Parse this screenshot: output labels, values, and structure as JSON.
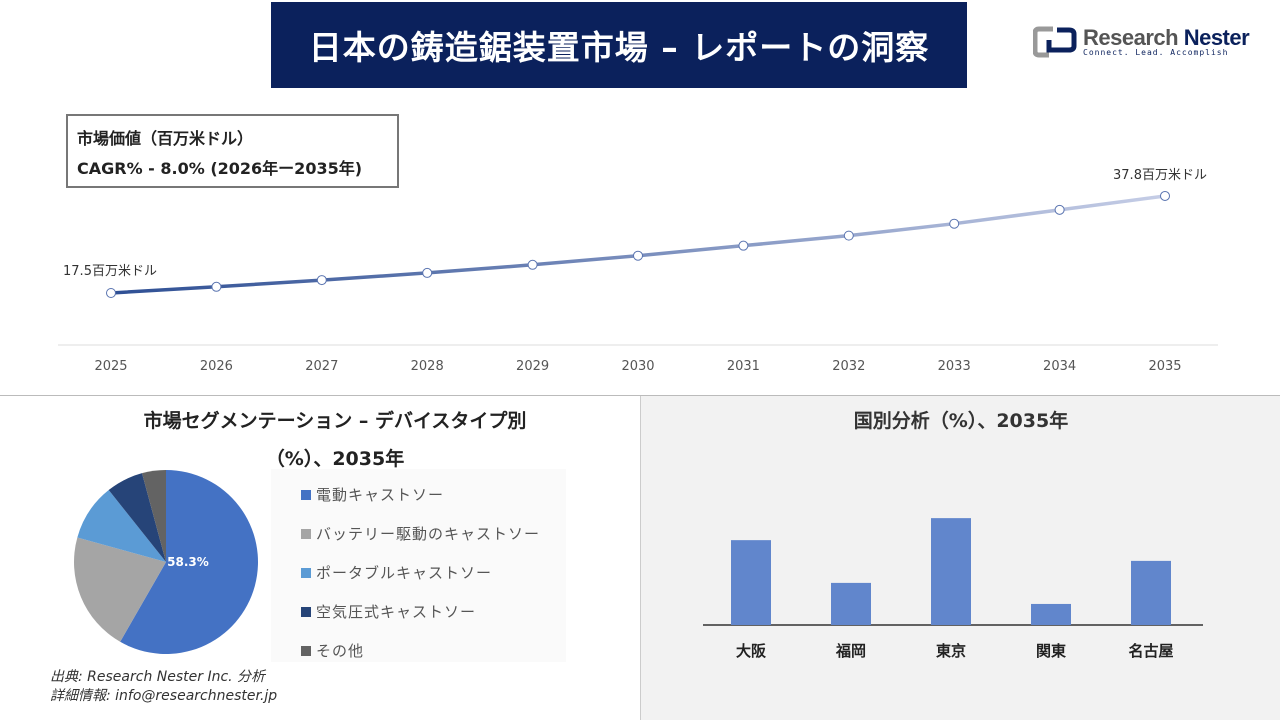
{
  "header": {
    "title": "日本の鋳造鋸装置市場 – レポートの洞察",
    "logo_name_1": "Research",
    "logo_name_2": "Nester",
    "logo_tagline": "Connect. Lead. Accomplish"
  },
  "infobox": {
    "line1": "市場価値（百万米ドル）",
    "line2": "CAGR% - 8.0% (2026年ー2035年)"
  },
  "chart_data": [
    {
      "type": "line",
      "title": "市場価値（百万米ドル）",
      "x": [
        "2025",
        "2026",
        "2027",
        "2028",
        "2029",
        "2030",
        "2031",
        "2032",
        "2033",
        "2034",
        "2035"
      ],
      "values": [
        17.5,
        18.8,
        20.2,
        21.7,
        23.4,
        25.3,
        27.4,
        29.5,
        32.0,
        34.9,
        37.8
      ],
      "annotations": {
        "start": "17.5百万米ドル",
        "end": "37.8百万米ドル"
      },
      "grid": false,
      "colors": {
        "start": "#2e4f94",
        "end": "#c5cde6"
      }
    },
    {
      "type": "pie",
      "title_line1": "市場セグメンテーション – デバイスタイプ別",
      "title_line2": "（%）、2035年",
      "labels": [
        "電動キャストソー",
        "バッテリー駆動のキャストソー",
        "ポータブルキャストソー",
        "空気圧式キャストソー",
        "その他"
      ],
      "values": [
        58.3,
        21.0,
        10.0,
        6.5,
        4.2
      ],
      "data_label": "58.3%",
      "colors": [
        "#4472c4",
        "#a5a5a5",
        "#5b9bd5",
        "#264478",
        "#636363"
      ],
      "legend": "right"
    },
    {
      "type": "bar",
      "title": "国別分析（%）、2035年",
      "categories": [
        "大阪",
        "福岡",
        "東京",
        "関東",
        "名古屋"
      ],
      "values": [
        26.6,
        13.2,
        33.5,
        6.6,
        20.1
      ],
      "color": "#6186cc",
      "grid": false
    }
  ],
  "footer": {
    "source": "出典: Research Nester Inc. 分析",
    "contact": "詳細情報: info@researchnester.jp"
  }
}
